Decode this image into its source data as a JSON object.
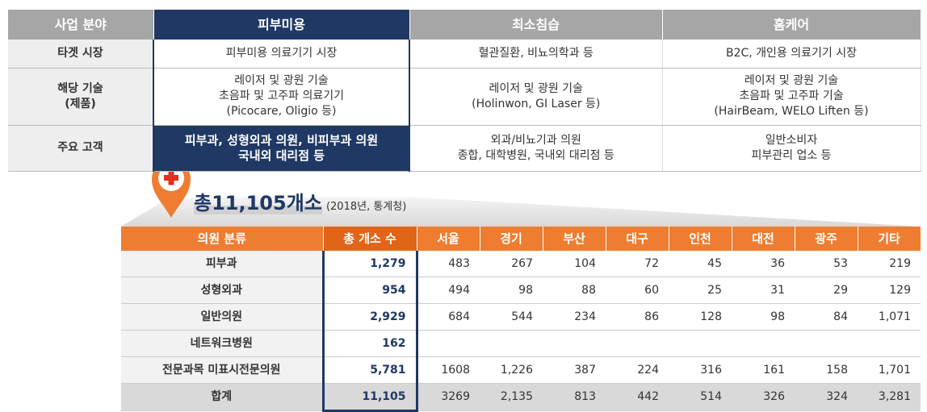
{
  "top_table": {
    "header": [
      "사업 분야",
      "피부미용",
      "최소침습",
      "홈케어"
    ],
    "rows": [
      [
        [
          "타겟 시장"
        ],
        [
          "피부미용 의료기기 시장"
        ],
        [
          "혈관질환, 비뇨의학과 등"
        ],
        [
          "B2C, 개인용 의료기기 시장"
        ]
      ],
      [
        [
          "해당 기술",
          "(제품)"
        ],
        [
          "레이저 및 광원 기술",
          "초음파 및 고주파 의료기기",
          "(Picocare, Oligio 등)"
        ],
        [
          "레이저 및 광원 기술",
          "(Holinwon, GI Laser 등)"
        ],
        [
          "레이저 및 광원 기술",
          "초음파 및 고주파 기술",
          "(HairBeam, WELO Liften 등)"
        ]
      ],
      [
        [
          "주요 고객"
        ],
        [
          "피부과, 성형외과 의원, 비피부과 의원",
          "국내외 대리점 등"
        ],
        [
          "외과/비뇨기과 의원",
          "종합, 대학병원, 국내외 대리점 등"
        ],
        [
          "일반소비자",
          "피부관리 업소 등"
        ]
      ]
    ]
  },
  "callout": {
    "total": "총11,105개소",
    "source": "(2018년, 통계청)"
  },
  "bottom_table": {
    "header": [
      "의원 분류",
      "총 개소 수",
      "서울",
      "경기",
      "부산",
      "대구",
      "인천",
      "대전",
      "광주",
      "기타"
    ],
    "rows": [
      [
        "피부과",
        "1,279",
        "483",
        "267",
        "104",
        "72",
        "45",
        "36",
        "53",
        "219"
      ],
      [
        "성형외과",
        "954",
        "494",
        "98",
        "88",
        "60",
        "25",
        "31",
        "29",
        "129"
      ],
      [
        "일반의원",
        "2,929",
        "684",
        "544",
        "234",
        "86",
        "128",
        "98",
        "84",
        "1,071"
      ],
      [
        "네트워크병원",
        "162",
        "",
        "",
        "",
        "",
        "",
        "",
        "",
        ""
      ],
      [
        "전문과목 미표시전문의원",
        "5,781",
        "1608",
        "1,226",
        "387",
        "224",
        "316",
        "161",
        "158",
        "1,701"
      ],
      [
        "합계",
        "11,105",
        "3269",
        "2,135",
        "813",
        "442",
        "514",
        "326",
        "324",
        "3,281"
      ]
    ]
  }
}
